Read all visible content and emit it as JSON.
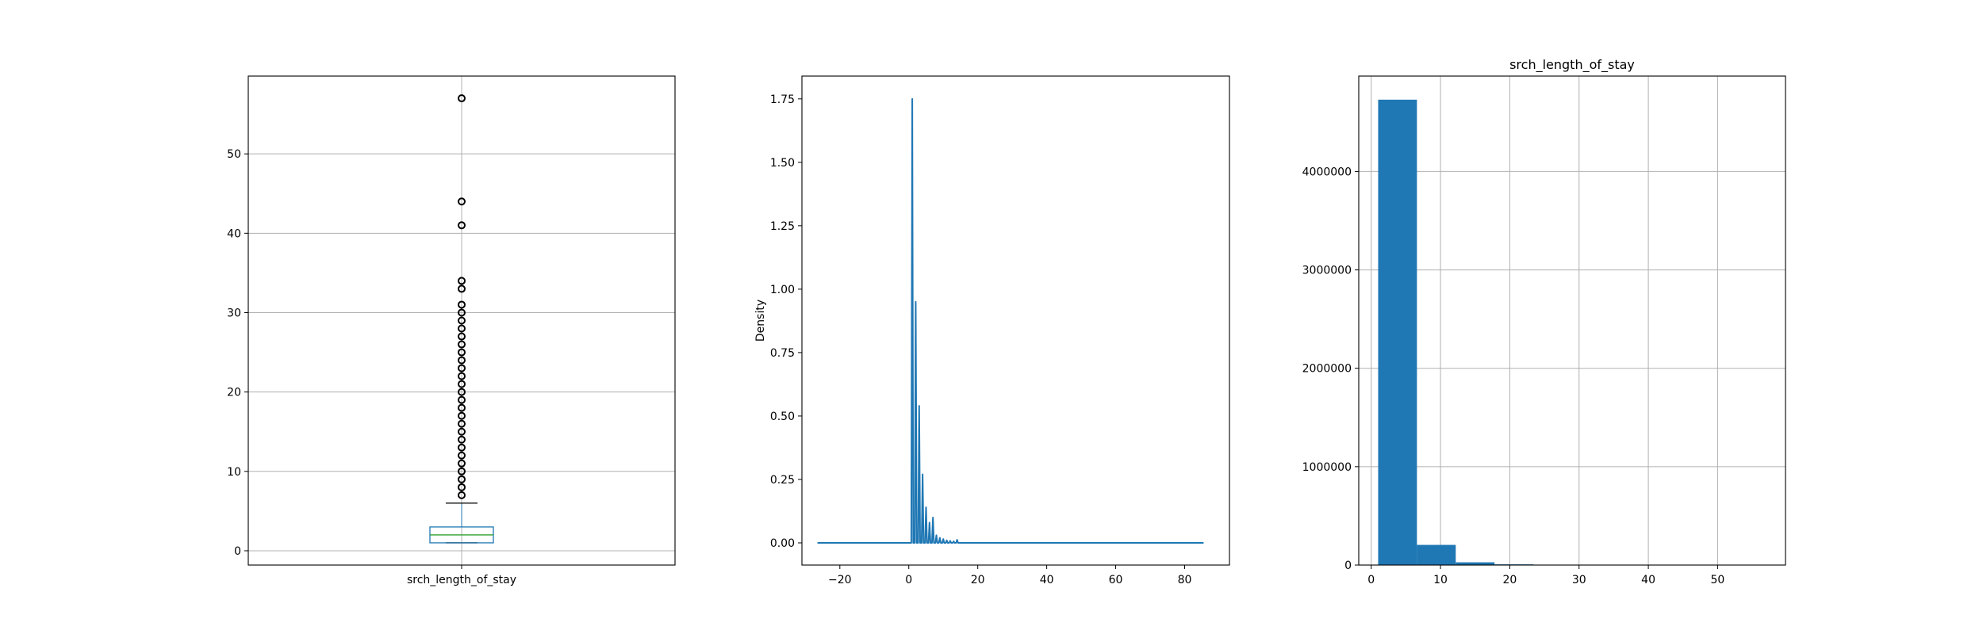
{
  "chart_data": [
    {
      "type": "box",
      "xticklabels": [
        "srch_length_of_stay"
      ],
      "ylim": [
        -1.8,
        59.8
      ],
      "yticks": [
        0,
        10,
        20,
        30,
        40,
        50
      ],
      "grid": true,
      "box": {
        "whisker_low": 1,
        "q1": 1,
        "median": 2,
        "q3": 3,
        "whisker_high": 6
      },
      "outliers": [
        7,
        8,
        9,
        10,
        11,
        12,
        13,
        14,
        15,
        16,
        17,
        18,
        19,
        20,
        21,
        22,
        23,
        24,
        25,
        26,
        27,
        28,
        29,
        30,
        31,
        33,
        34,
        41,
        44,
        57
      ],
      "colors": {
        "box": "#1f77b4",
        "median": "#2ca02c",
        "whisker": "#1f77b4",
        "cap": "#000000",
        "flier": "#000000"
      }
    },
    {
      "type": "line",
      "ylabel": "Density",
      "xlim": [
        -31,
        93
      ],
      "ylim": [
        -0.0875,
        1.84
      ],
      "xticks": [
        -20,
        0,
        20,
        40,
        60,
        80
      ],
      "yticks": [
        0.0,
        0.25,
        0.5,
        0.75,
        1.0,
        1.25,
        1.5,
        1.75
      ],
      "ytick_format": 2,
      "grid": false,
      "x_range": [
        -26.5,
        85.5
      ],
      "peaks": [
        {
          "x": 1,
          "y": 1.75
        },
        {
          "x": 2,
          "y": 0.95
        },
        {
          "x": 3,
          "y": 0.54
        },
        {
          "x": 4,
          "y": 0.27
        },
        {
          "x": 5,
          "y": 0.14
        },
        {
          "x": 6,
          "y": 0.08
        },
        {
          "x": 7,
          "y": 0.1
        },
        {
          "x": 8,
          "y": 0.03
        },
        {
          "x": 9,
          "y": 0.02
        },
        {
          "x": 10,
          "y": 0.015
        },
        {
          "x": 11,
          "y": 0.01
        },
        {
          "x": 12,
          "y": 0.008
        },
        {
          "x": 13,
          "y": 0.006
        },
        {
          "x": 14,
          "y": 0.012
        }
      ],
      "colors": {
        "line": "#1f77b4"
      }
    },
    {
      "type": "bar",
      "title": "srch_length_of_stay",
      "xlim": [
        -1.8,
        59.8
      ],
      "ylim": [
        0,
        4970000
      ],
      "xticks": [
        0,
        10,
        20,
        30,
        40,
        50
      ],
      "yticks": [
        0,
        1000000,
        2000000,
        3000000,
        4000000
      ],
      "grid": true,
      "bins": [
        {
          "x0": 1.0,
          "x1": 6.6,
          "count": 4730000
        },
        {
          "x0": 6.6,
          "x1": 12.2,
          "count": 205000
        },
        {
          "x0": 12.2,
          "x1": 17.8,
          "count": 28000
        },
        {
          "x0": 17.8,
          "x1": 23.4,
          "count": 7000
        },
        {
          "x0": 23.4,
          "x1": 29.0,
          "count": 2000
        },
        {
          "x0": 29.0,
          "x1": 34.6,
          "count": 800
        },
        {
          "x0": 34.6,
          "x1": 40.2,
          "count": 150
        },
        {
          "x0": 40.2,
          "x1": 45.8,
          "count": 60
        },
        {
          "x0": 45.8,
          "x1": 51.4,
          "count": 20
        },
        {
          "x0": 51.4,
          "x1": 57.0,
          "count": 10
        }
      ],
      "colors": {
        "bar": "#1f77b4"
      }
    }
  ]
}
